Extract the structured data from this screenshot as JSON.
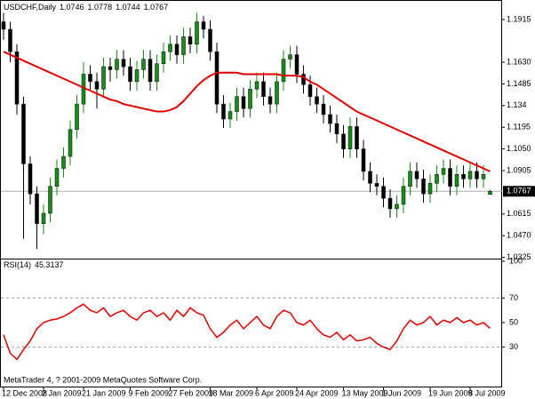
{
  "chart_data": [
    {
      "type": "candlestick",
      "title": "USDCHF,Daily",
      "categories": [
        "12 Dec 2008",
        null,
        null,
        null,
        null,
        null,
        "2 Jan 2009",
        null,
        null,
        null,
        null,
        null,
        "21 Jan 2009",
        null,
        null,
        null,
        null,
        null,
        null,
        "9 Feb 2009",
        null,
        null,
        null,
        null,
        null,
        "27 Feb 2009",
        null,
        null,
        null,
        null,
        null,
        "18 Mar 2009",
        null,
        null,
        null,
        null,
        null,
        null,
        "6 Apr 2009",
        null,
        null,
        null,
        null,
        null,
        "24 Apr 2009",
        null,
        null,
        null,
        null,
        null,
        null,
        "13 May 2009",
        null,
        null,
        null,
        null,
        null,
        "1 Jun 2009",
        null,
        null,
        null,
        null,
        null,
        null,
        "19 Jun 2009",
        null,
        null,
        null,
        null,
        null,
        "8 Jul 2009",
        null,
        null,
        null
      ],
      "open": [
        1.19,
        1.185,
        1.17,
        1.135,
        1.095,
        1.075,
        1.055,
        1.062,
        1.08,
        1.092,
        1.1,
        1.118,
        1.135,
        1.155,
        1.15,
        1.145,
        1.16,
        1.158,
        1.165,
        1.16,
        1.15,
        1.158,
        1.165,
        1.15,
        1.162,
        1.17,
        1.175,
        1.168,
        1.18,
        1.175,
        1.19,
        1.185,
        1.17,
        1.135,
        1.125,
        1.13,
        1.14,
        1.132,
        1.145,
        1.15,
        1.14,
        1.135,
        1.15,
        1.165,
        1.168,
        1.155,
        1.148,
        1.14,
        1.135,
        1.128,
        1.122,
        1.115,
        1.105,
        1.12,
        1.105,
        1.09,
        1.082,
        1.08,
        1.072,
        1.065,
        1.068,
        1.08,
        1.09,
        1.085,
        1.075,
        1.082,
        1.088,
        1.092,
        1.08,
        1.088,
        1.085,
        1.09,
        1.085,
        1.0746
      ],
      "high": [
        1.196,
        1.19,
        1.175,
        1.14,
        1.1,
        1.08,
        1.068,
        1.086,
        1.098,
        1.106,
        1.124,
        1.141,
        1.163,
        1.161,
        1.156,
        1.166,
        1.166,
        1.171,
        1.171,
        1.166,
        1.164,
        1.171,
        1.171,
        1.168,
        1.176,
        1.181,
        1.181,
        1.186,
        1.186,
        1.196,
        1.194,
        1.191,
        1.176,
        1.141,
        1.136,
        1.146,
        1.146,
        1.151,
        1.156,
        1.156,
        1.146,
        1.156,
        1.171,
        1.174,
        1.174,
        1.161,
        1.154,
        1.146,
        1.141,
        1.134,
        1.128,
        1.121,
        1.126,
        1.126,
        1.111,
        1.096,
        1.088,
        1.086,
        1.078,
        1.074,
        1.086,
        1.096,
        1.096,
        1.091,
        1.088,
        1.094,
        1.098,
        1.098,
        1.094,
        1.094,
        1.096,
        1.096,
        1.094,
        1.0778
      ],
      "low": [
        1.178,
        1.163,
        1.128,
        1.045,
        1.068,
        1.038,
        1.048,
        1.056,
        1.074,
        1.086,
        1.094,
        1.112,
        1.129,
        1.144,
        1.132,
        1.139,
        1.15,
        1.152,
        1.154,
        1.144,
        1.144,
        1.152,
        1.144,
        1.144,
        1.156,
        1.164,
        1.162,
        1.162,
        1.169,
        1.169,
        1.179,
        1.164,
        1.129,
        1.119,
        1.119,
        1.124,
        1.126,
        1.126,
        1.139,
        1.134,
        1.129,
        1.129,
        1.144,
        1.159,
        1.149,
        1.142,
        1.134,
        1.129,
        1.122,
        1.116,
        1.109,
        1.099,
        1.099,
        1.099,
        1.084,
        1.076,
        1.074,
        1.066,
        1.059,
        1.059,
        1.062,
        1.074,
        1.079,
        1.069,
        1.069,
        1.076,
        1.082,
        1.074,
        1.074,
        1.079,
        1.079,
        1.079,
        1.079,
        1.0744
      ],
      "close": [
        1.185,
        1.17,
        1.135,
        1.095,
        1.075,
        1.055,
        1.062,
        1.08,
        1.092,
        1.1,
        1.118,
        1.135,
        1.155,
        1.15,
        1.145,
        1.16,
        1.158,
        1.165,
        1.16,
        1.15,
        1.158,
        1.165,
        1.15,
        1.162,
        1.17,
        1.175,
        1.168,
        1.18,
        1.175,
        1.19,
        1.185,
        1.17,
        1.135,
        1.125,
        1.13,
        1.14,
        1.132,
        1.145,
        1.15,
        1.14,
        1.135,
        1.15,
        1.165,
        1.168,
        1.155,
        1.148,
        1.14,
        1.135,
        1.128,
        1.122,
        1.115,
        1.105,
        1.12,
        1.105,
        1.09,
        1.082,
        1.08,
        1.072,
        1.065,
        1.068,
        1.08,
        1.09,
        1.085,
        1.075,
        1.082,
        1.088,
        1.092,
        1.08,
        1.088,
        1.085,
        1.09,
        1.085,
        1.088,
        1.0767
      ],
      "up_color": "#1a8c1a",
      "down_color": "#000000",
      "ma": {
        "color": "#e00000",
        "values": [
          1.17,
          1.168,
          1.166,
          1.164,
          1.162,
          1.16,
          1.158,
          1.156,
          1.154,
          1.152,
          1.15,
          1.148,
          1.146,
          1.144,
          1.142,
          1.14,
          1.138,
          1.137,
          1.135,
          1.134,
          1.133,
          1.132,
          1.131,
          1.13,
          1.13,
          1.131,
          1.133,
          1.137,
          1.142,
          1.147,
          1.151,
          1.154,
          1.156,
          1.156,
          1.156,
          1.156,
          1.155,
          1.155,
          1.155,
          1.155,
          1.155,
          1.155,
          1.154,
          1.154,
          1.154,
          1.153,
          1.15,
          1.148,
          1.145,
          1.142,
          1.139,
          1.136,
          1.133,
          1.13,
          1.128,
          1.126,
          1.124,
          1.122,
          1.12,
          1.118,
          1.116,
          1.114,
          1.112,
          1.11,
          1.108,
          1.106,
          1.104,
          1.102,
          1.1,
          1.098,
          1.096,
          1.094,
          1.092,
          1.09
        ]
      },
      "ylim": [
        1.0311,
        1.2034
      ],
      "yticks": [
        1.1915,
        {
          "value": 1.163,
          "label": "1.1630"
        },
        1.1485,
        1.134,
        1.1195,
        {
          "value": 1.105,
          "label": "1.1050"
        },
        1.0905,
        1.0615,
        {
          "value": 1.047,
          "label": "1.0470"
        },
        1.0325
      ]
    },
    {
      "type": "line",
      "title": "RSI(14)",
      "color": "#e00000",
      "values": [
        40,
        25,
        20,
        28,
        35,
        45,
        50,
        52,
        53,
        55,
        58,
        62,
        65,
        60,
        58,
        62,
        55,
        58,
        60,
        55,
        52,
        58,
        60,
        55,
        58,
        52,
        60,
        55,
        62,
        58,
        56,
        45,
        38,
        42,
        48,
        52,
        45,
        50,
        55,
        48,
        45,
        55,
        60,
        58,
        50,
        48,
        52,
        45,
        40,
        38,
        42,
        36,
        40,
        35,
        36,
        38,
        33,
        30,
        28,
        35,
        45,
        52,
        48,
        50,
        55,
        48,
        52,
        50,
        54,
        50,
        52,
        48,
        50,
        45.3137
      ],
      "ylim": [
        0,
        100
      ],
      "yticks": [
        100,
        70,
        50,
        30
      ],
      "levels": [
        70,
        30
      ],
      "footer": "MetaTrader 4, ? 2001-2009 MetaQuotes Software Corp."
    }
  ]
}
